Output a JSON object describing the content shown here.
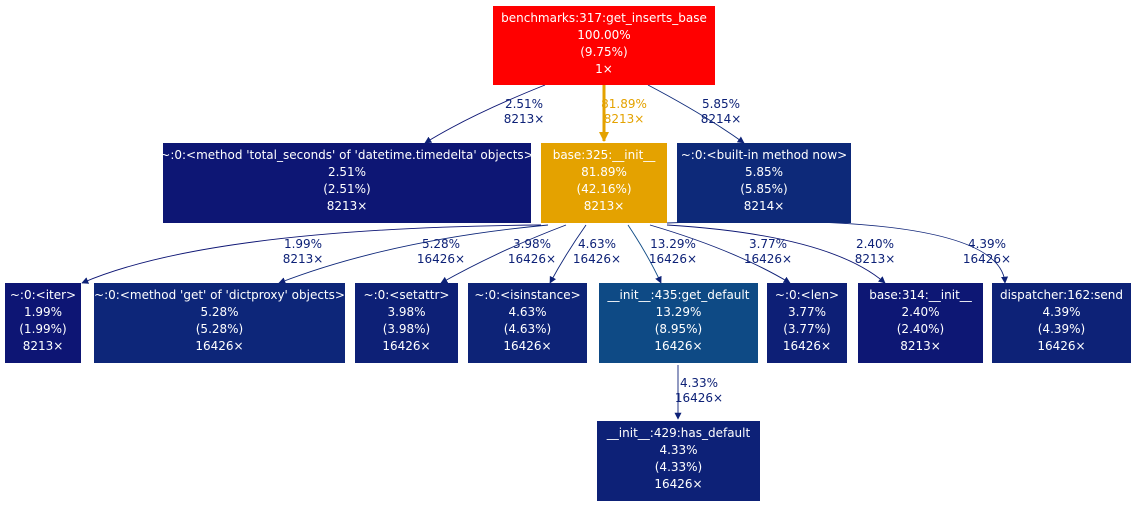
{
  "graph": {
    "nodes": [
      {
        "id": "n0",
        "name": "node-get-inserts-base",
        "lines": [
          "benchmarks:317:get_inserts_base",
          "100.00%",
          "(9.75%)",
          "1×"
        ],
        "fill": "#ff0000"
      },
      {
        "id": "n1",
        "name": "node-total-seconds",
        "lines": [
          "~:0:<method 'total_seconds' of 'datetime.timedelta' objects>",
          "2.51%",
          "(2.51%)",
          "8213×"
        ],
        "fill": "#0d1674"
      },
      {
        "id": "n2",
        "name": "node-base-325-init",
        "lines": [
          "base:325:__init__",
          "81.89%",
          "(42.16%)",
          "8213×"
        ],
        "fill": "#e4a200"
      },
      {
        "id": "n3",
        "name": "node-built-in-method-now",
        "lines": [
          "~:0:<built-in method now>",
          "5.85%",
          "(5.85%)",
          "8214×"
        ],
        "fill": "#0d2979"
      },
      {
        "id": "n4",
        "name": "node-iter",
        "lines": [
          "~:0:<iter>",
          "1.99%",
          "(1.99%)",
          "8213×"
        ],
        "fill": "#0d1574"
      },
      {
        "id": "n5",
        "name": "node-dictproxy-get",
        "lines": [
          "~:0:<method 'get' of 'dictproxy' objects>",
          "5.28%",
          "(5.28%)",
          "16426×"
        ],
        "fill": "#0d2679"
      },
      {
        "id": "n6",
        "name": "node-setattr",
        "lines": [
          "~:0:<setattr>",
          "3.98%",
          "(3.98%)",
          "16426×"
        ],
        "fill": "#0d2076"
      },
      {
        "id": "n7",
        "name": "node-isinstance",
        "lines": [
          "~:0:<isinstance>",
          "4.63%",
          "(4.63%)",
          "16426×"
        ],
        "fill": "#0d2377"
      },
      {
        "id": "n8",
        "name": "node-get-default",
        "lines": [
          "__init__:435:get_default",
          "13.29%",
          "(8.95%)",
          "16426×"
        ],
        "fill": "#0e4a85"
      },
      {
        "id": "n9",
        "name": "node-len",
        "lines": [
          "~:0:<len>",
          "3.77%",
          "(3.77%)",
          "16426×"
        ],
        "fill": "#0d1f76"
      },
      {
        "id": "n10",
        "name": "node-base-314-init",
        "lines": [
          "base:314:__init__",
          "2.40%",
          "(2.40%)",
          "8213×"
        ],
        "fill": "#0d1774"
      },
      {
        "id": "n11",
        "name": "node-dispatcher-send",
        "lines": [
          "dispatcher:162:send",
          "4.39%",
          "(4.39%)",
          "16426×"
        ],
        "fill": "#0d2277"
      },
      {
        "id": "n12",
        "name": "node-has-default",
        "lines": [
          "__init__:429:has_default",
          "4.33%",
          "(4.33%)",
          "16426×"
        ],
        "fill": "#0d2177"
      }
    ],
    "edges": [
      {
        "id": "e0",
        "name": "edge-get-inserts-base-to-total-seconds",
        "from": "n0",
        "to": "n1",
        "lines": [
          "2.51%",
          "8213×"
        ],
        "color": "#0d1674"
      },
      {
        "id": "e1",
        "name": "edge-get-inserts-base-to-base-325-init",
        "from": "n0",
        "to": "n2",
        "lines": [
          "81.89%",
          "8213×"
        ],
        "color": "#e4a200"
      },
      {
        "id": "e2",
        "name": "edge-get-inserts-base-to-now",
        "from": "n0",
        "to": "n3",
        "lines": [
          "5.85%",
          "8214×"
        ],
        "color": "#0d2979"
      },
      {
        "id": "e3",
        "name": "edge-base-325-init-to-iter",
        "from": "n2",
        "to": "n4",
        "lines": [
          "1.99%",
          "8213×"
        ],
        "color": "#0d1574"
      },
      {
        "id": "e4",
        "name": "edge-base-325-init-to-dictproxy-get",
        "from": "n2",
        "to": "n5",
        "lines": [
          "5.28%",
          "16426×"
        ],
        "color": "#0d2679"
      },
      {
        "id": "e5",
        "name": "edge-base-325-init-to-setattr",
        "from": "n2",
        "to": "n6",
        "lines": [
          "3.98%",
          "16426×"
        ],
        "color": "#0d2076"
      },
      {
        "id": "e6",
        "name": "edge-base-325-init-to-isinstance",
        "from": "n2",
        "to": "n7",
        "lines": [
          "4.63%",
          "16426×"
        ],
        "color": "#0d2377"
      },
      {
        "id": "e7",
        "name": "edge-base-325-init-to-get-default",
        "from": "n2",
        "to": "n8",
        "lines": [
          "13.29%",
          "16426×"
        ],
        "color": "#0e4a85"
      },
      {
        "id": "e8",
        "name": "edge-base-325-init-to-len",
        "from": "n2",
        "to": "n9",
        "lines": [
          "3.77%",
          "16426×"
        ],
        "color": "#0d1f76"
      },
      {
        "id": "e9",
        "name": "edge-base-325-init-to-base-314-init",
        "from": "n2",
        "to": "n10",
        "lines": [
          "2.40%",
          "8213×"
        ],
        "color": "#0d1774"
      },
      {
        "id": "e10",
        "name": "edge-base-325-init-to-dispatcher-send",
        "from": "n2",
        "to": "n11",
        "lines": [
          "4.39%",
          "16426×"
        ],
        "color": "#0d2277"
      },
      {
        "id": "e11",
        "name": "edge-get-default-to-has-default",
        "from": "n8",
        "to": "n12",
        "lines": [
          "4.33%",
          "16426×"
        ],
        "color": "#0d2177"
      }
    ]
  }
}
